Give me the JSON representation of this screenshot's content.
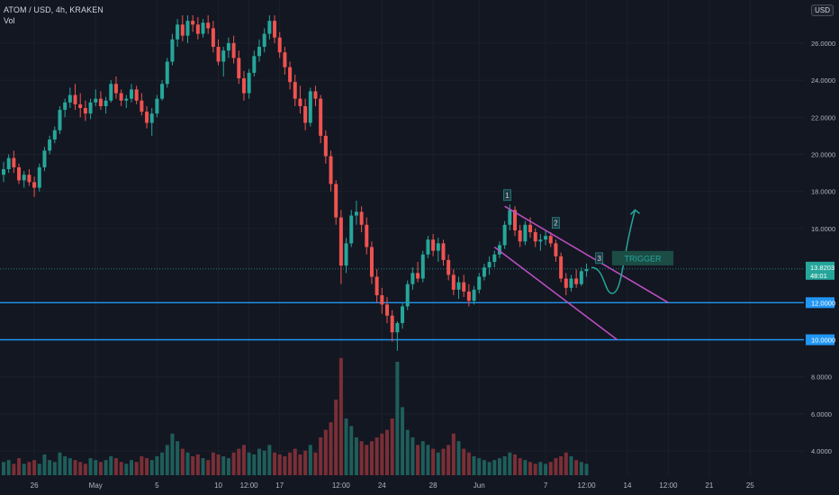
{
  "header": {
    "title": "ATOM / USD, 4h, KRAKEN",
    "vol_label": "Vol",
    "currency": "USD"
  },
  "colors": {
    "background": "#131722",
    "grid": "#1c202b",
    "up": "#26a69a",
    "down": "#ef5350",
    "vol_up": "#1f5e5a",
    "vol_down": "#7a2f36",
    "support": "#2196f3",
    "channel": "#c04fc4",
    "arrow": "#26a69a",
    "axis_text": "#b2b5be",
    "price_badge": "#26a69a",
    "trigger_bg": "#1b4d45"
  },
  "chart_data": {
    "type": "candlestick",
    "y_axis": {
      "min": 2.4,
      "max": 27.5,
      "ticks": [
        {
          "value": 26,
          "label": "26.0000"
        },
        {
          "value": 24,
          "label": "24.0000"
        },
        {
          "value": 22,
          "label": "22.0000"
        },
        {
          "value": 20,
          "label": "20.0000"
        },
        {
          "value": 18,
          "label": "18.0000"
        },
        {
          "value": 16,
          "label": "16.0000"
        },
        {
          "value": 8,
          "label": "8.0000"
        },
        {
          "value": 6,
          "label": "6.0000"
        },
        {
          "value": 4,
          "label": "4.0000"
        }
      ]
    },
    "x_axis": {
      "ticks": [
        {
          "index": 6,
          "label": "26"
        },
        {
          "index": 18,
          "label": "May"
        },
        {
          "index": 30,
          "label": "5"
        },
        {
          "index": 42,
          "label": "10"
        },
        {
          "index": 48,
          "label": "12:00"
        },
        {
          "index": 54,
          "label": "17"
        },
        {
          "index": 66,
          "label": "12:00"
        },
        {
          "index": 74,
          "label": "24"
        },
        {
          "index": 84,
          "label": "28"
        },
        {
          "index": 93,
          "label": "Jun"
        },
        {
          "index": 106,
          "label": "7"
        },
        {
          "index": 114,
          "label": "12:00"
        },
        {
          "index": 122,
          "label": "14"
        },
        {
          "index": 130,
          "label": "12:00"
        },
        {
          "index": 138,
          "label": "21"
        },
        {
          "index": 146,
          "label": "25"
        }
      ]
    },
    "total_slots": 150,
    "current_price": {
      "value": 13.82,
      "label": "13.8203",
      "countdown": "48:01"
    },
    "support_levels": [
      {
        "value": 12.0,
        "label": "12.0000"
      },
      {
        "value": 10.0,
        "label": "10.0000"
      }
    ],
    "channel": {
      "upper": [
        {
          "i": 98,
          "v": 17.2
        },
        {
          "i": 130,
          "v": 12.0
        }
      ],
      "lower": [
        {
          "i": 96,
          "v": 15.0
        },
        {
          "i": 120,
          "v": 10.0
        }
      ]
    },
    "projection": [
      {
        "i": 115,
        "v": 13.9
      },
      {
        "i": 117.5,
        "v": 13.1
      },
      {
        "i": 119,
        "v": 12.5
      },
      {
        "i": 121,
        "v": 14.5
      },
      {
        "i": 123.5,
        "v": 17.0
      }
    ],
    "wave_labels": [
      {
        "label": "1",
        "i": 98.5,
        "v": 17.8
      },
      {
        "label": "2",
        "i": 108,
        "v": 16.3
      },
      {
        "label": "3",
        "i": 116.5,
        "v": 14.4
      }
    ],
    "annotation": {
      "label": "TRIGGER",
      "i1": 119,
      "i2": 131,
      "v": 14.4
    },
    "candles": [
      [
        18.9,
        19.6,
        18.5,
        19.2
      ],
      [
        19.2,
        20.0,
        19.0,
        19.8
      ],
      [
        19.8,
        20.2,
        19.0,
        19.3
      ],
      [
        19.3,
        19.5,
        18.4,
        18.6
      ],
      [
        18.6,
        19.1,
        18.2,
        18.9
      ],
      [
        18.9,
        19.2,
        18.3,
        18.5
      ],
      [
        18.5,
        18.8,
        17.7,
        18.2
      ],
      [
        18.2,
        19.5,
        18.0,
        19.3
      ],
      [
        19.3,
        20.4,
        19.1,
        20.2
      ],
      [
        20.2,
        21.0,
        20.0,
        20.8
      ],
      [
        20.8,
        21.5,
        20.6,
        21.3
      ],
      [
        21.3,
        22.6,
        21.1,
        22.4
      ],
      [
        22.4,
        23.0,
        22.0,
        22.8
      ],
      [
        22.8,
        23.6,
        22.5,
        23.2
      ],
      [
        23.2,
        23.8,
        22.4,
        22.7
      ],
      [
        22.7,
        23.3,
        22.0,
        22.5
      ],
      [
        22.5,
        22.9,
        21.8,
        22.2
      ],
      [
        22.2,
        23.0,
        21.9,
        22.8
      ],
      [
        22.8,
        23.5,
        22.6,
        23.0
      ],
      [
        23.0,
        23.4,
        22.4,
        22.6
      ],
      [
        22.6,
        23.1,
        22.2,
        22.9
      ],
      [
        22.9,
        24.0,
        22.8,
        23.8
      ],
      [
        23.8,
        24.2,
        23.0,
        23.3
      ],
      [
        23.3,
        23.5,
        22.6,
        22.9
      ],
      [
        22.9,
        23.2,
        22.5,
        23.0
      ],
      [
        23.0,
        23.8,
        22.8,
        23.5
      ],
      [
        23.5,
        23.7,
        22.7,
        22.9
      ],
      [
        22.9,
        23.3,
        22.1,
        22.3
      ],
      [
        22.3,
        22.6,
        21.4,
        21.7
      ],
      [
        21.7,
        22.5,
        21.0,
        22.2
      ],
      [
        22.2,
        23.2,
        22.0,
        23.0
      ],
      [
        23.0,
        24.0,
        22.9,
        23.8
      ],
      [
        23.8,
        25.2,
        23.6,
        25.0
      ],
      [
        25.0,
        26.5,
        24.8,
        26.2
      ],
      [
        26.2,
        27.3,
        25.8,
        27.0
      ],
      [
        27.0,
        27.5,
        26.1,
        26.4
      ],
      [
        26.4,
        27.5,
        26.0,
        27.2
      ],
      [
        27.2,
        27.5,
        26.6,
        27.0
      ],
      [
        27.0,
        27.4,
        26.2,
        26.5
      ],
      [
        26.5,
        27.3,
        26.3,
        27.1
      ],
      [
        27.1,
        27.5,
        26.5,
        26.8
      ],
      [
        26.8,
        27.2,
        25.5,
        25.8
      ],
      [
        25.8,
        26.2,
        24.8,
        25.0
      ],
      [
        25.0,
        25.8,
        24.2,
        25.6
      ],
      [
        25.6,
        26.3,
        25.2,
        26.0
      ],
      [
        26.0,
        26.4,
        24.9,
        25.2
      ],
      [
        25.2,
        25.6,
        23.8,
        24.1
      ],
      [
        24.1,
        24.5,
        22.9,
        23.3
      ],
      [
        23.3,
        24.6,
        23.0,
        24.4
      ],
      [
        24.4,
        25.6,
        24.2,
        25.3
      ],
      [
        25.3,
        26.2,
        25.0,
        25.8
      ],
      [
        25.8,
        26.8,
        25.5,
        26.5
      ],
      [
        26.5,
        27.5,
        26.2,
        27.2
      ],
      [
        27.2,
        27.5,
        26.0,
        26.3
      ],
      [
        26.3,
        26.6,
        25.2,
        25.5
      ],
      [
        25.5,
        25.8,
        24.3,
        24.7
      ],
      [
        24.7,
        25.0,
        23.5,
        23.9
      ],
      [
        23.9,
        24.3,
        22.6,
        23.0
      ],
      [
        23.0,
        23.7,
        22.2,
        22.6
      ],
      [
        22.6,
        23.0,
        21.3,
        21.7
      ],
      [
        21.7,
        23.6,
        21.5,
        23.4
      ],
      [
        23.4,
        23.7,
        22.6,
        23.0
      ],
      [
        23.0,
        23.2,
        20.6,
        21.0
      ],
      [
        21.0,
        21.3,
        19.5,
        19.9
      ],
      [
        19.9,
        20.2,
        18.0,
        18.4
      ],
      [
        18.4,
        18.6,
        16.2,
        16.6
      ],
      [
        16.6,
        17.0,
        13.0,
        14.0
      ],
      [
        14.0,
        15.5,
        13.6,
        15.2
      ],
      [
        15.2,
        17.0,
        15.0,
        16.7
      ],
      [
        16.7,
        17.5,
        16.2,
        16.9
      ],
      [
        16.9,
        17.2,
        15.8,
        16.2
      ],
      [
        16.2,
        16.6,
        14.6,
        15.0
      ],
      [
        15.0,
        15.3,
        13.0,
        13.4
      ],
      [
        13.4,
        13.8,
        12.0,
        12.4
      ],
      [
        12.4,
        12.8,
        11.4,
        11.9
      ],
      [
        11.9,
        12.3,
        10.9,
        11.3
      ],
      [
        11.3,
        11.6,
        9.9,
        10.4
      ],
      [
        10.4,
        11.0,
        9.4,
        10.9
      ],
      [
        10.9,
        12.0,
        10.6,
        11.8
      ],
      [
        11.8,
        13.2,
        11.6,
        13.0
      ],
      [
        13.0,
        13.9,
        12.7,
        13.6
      ],
      [
        13.6,
        14.2,
        13.1,
        13.3
      ],
      [
        13.3,
        14.8,
        13.1,
        14.6
      ],
      [
        14.6,
        15.6,
        14.4,
        15.4
      ],
      [
        15.4,
        15.7,
        14.5,
        14.8
      ],
      [
        14.8,
        15.5,
        14.2,
        15.2
      ],
      [
        15.2,
        15.4,
        14.0,
        14.3
      ],
      [
        14.3,
        14.6,
        13.2,
        13.5
      ],
      [
        13.5,
        13.8,
        12.4,
        12.7
      ],
      [
        12.7,
        13.4,
        12.2,
        13.1
      ],
      [
        13.1,
        13.5,
        12.3,
        12.6
      ],
      [
        12.6,
        13.0,
        11.8,
        12.1
      ],
      [
        12.1,
        12.9,
        11.9,
        12.7
      ],
      [
        12.7,
        13.6,
        12.5,
        13.4
      ],
      [
        13.4,
        14.1,
        13.2,
        13.9
      ],
      [
        13.9,
        14.5,
        13.5,
        14.2
      ],
      [
        14.2,
        14.8,
        13.9,
        14.6
      ],
      [
        14.6,
        15.3,
        14.4,
        15.1
      ],
      [
        15.1,
        16.4,
        14.9,
        16.2
      ],
      [
        16.2,
        17.3,
        15.9,
        17.0
      ],
      [
        17.0,
        17.2,
        15.6,
        15.9
      ],
      [
        15.9,
        16.2,
        15.0,
        15.3
      ],
      [
        15.3,
        16.4,
        15.1,
        16.2
      ],
      [
        16.2,
        16.6,
        15.5,
        15.8
      ],
      [
        15.8,
        16.0,
        15.0,
        15.3
      ],
      [
        15.3,
        15.7,
        14.8,
        15.4
      ],
      [
        15.4,
        15.9,
        15.1,
        15.6
      ],
      [
        15.6,
        15.8,
        15.0,
        15.2
      ],
      [
        15.2,
        15.4,
        14.2,
        14.5
      ],
      [
        14.5,
        14.7,
        13.1,
        13.3
      ],
      [
        13.3,
        13.6,
        12.4,
        12.8
      ],
      [
        12.8,
        13.5,
        12.6,
        13.3
      ],
      [
        13.3,
        13.8,
        12.8,
        13.0
      ],
      [
        13.0,
        13.9,
        12.9,
        13.7
      ],
      [
        13.7,
        14.1,
        13.4,
        13.82
      ]
    ],
    "volume": [
      0.35,
      0.4,
      0.3,
      0.45,
      0.3,
      0.35,
      0.4,
      0.3,
      0.55,
      0.4,
      0.35,
      0.6,
      0.5,
      0.45,
      0.4,
      0.35,
      0.3,
      0.45,
      0.4,
      0.35,
      0.4,
      0.5,
      0.45,
      0.35,
      0.3,
      0.4,
      0.35,
      0.5,
      0.45,
      0.4,
      0.5,
      0.6,
      0.8,
      1.1,
      0.9,
      0.7,
      0.6,
      0.5,
      0.55,
      0.45,
      0.4,
      0.6,
      0.55,
      0.5,
      0.45,
      0.6,
      0.7,
      0.8,
      0.6,
      0.55,
      0.7,
      0.65,
      0.8,
      0.6,
      0.55,
      0.5,
      0.6,
      0.7,
      0.55,
      0.65,
      0.8,
      0.6,
      1.0,
      1.2,
      1.4,
      2.0,
      3.1,
      1.5,
      1.3,
      1.0,
      0.9,
      0.8,
      0.9,
      1.0,
      1.1,
      1.2,
      1.5,
      3.0,
      1.8,
      1.2,
      1.0,
      0.8,
      0.9,
      0.8,
      0.7,
      0.6,
      0.7,
      0.8,
      1.1,
      0.9,
      0.7,
      0.6,
      0.5,
      0.45,
      0.4,
      0.35,
      0.4,
      0.45,
      0.5,
      0.6,
      0.55,
      0.45,
      0.4,
      0.35,
      0.3,
      0.35,
      0.3,
      0.35,
      0.45,
      0.5,
      0.6,
      0.5,
      0.4,
      0.35,
      0.3
    ]
  }
}
